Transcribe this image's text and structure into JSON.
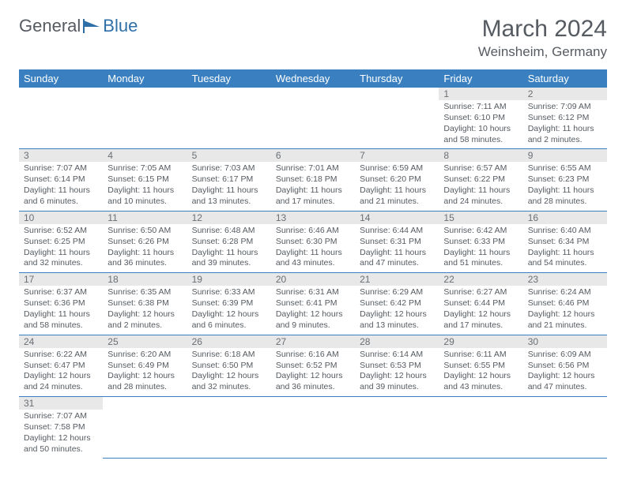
{
  "brand": {
    "part1": "General",
    "part2": "Blue"
  },
  "title": "March 2024",
  "location": "Weinsheim, Germany",
  "colors": {
    "header_bg": "#3a80c0",
    "header_fg": "#ffffff",
    "daynum_bg": "#e8e8e8",
    "text": "#555b61",
    "rule": "#3a80c0"
  },
  "daysOfWeek": [
    "Sunday",
    "Monday",
    "Tuesday",
    "Wednesday",
    "Thursday",
    "Friday",
    "Saturday"
  ],
  "weeks": [
    [
      null,
      null,
      null,
      null,
      null,
      {
        "n": "1",
        "sr": "7:11 AM",
        "ss": "6:10 PM",
        "dl": "10 hours and 58 minutes."
      },
      {
        "n": "2",
        "sr": "7:09 AM",
        "ss": "6:12 PM",
        "dl": "11 hours and 2 minutes."
      }
    ],
    [
      {
        "n": "3",
        "sr": "7:07 AM",
        "ss": "6:14 PM",
        "dl": "11 hours and 6 minutes."
      },
      {
        "n": "4",
        "sr": "7:05 AM",
        "ss": "6:15 PM",
        "dl": "11 hours and 10 minutes."
      },
      {
        "n": "5",
        "sr": "7:03 AM",
        "ss": "6:17 PM",
        "dl": "11 hours and 13 minutes."
      },
      {
        "n": "6",
        "sr": "7:01 AM",
        "ss": "6:18 PM",
        "dl": "11 hours and 17 minutes."
      },
      {
        "n": "7",
        "sr": "6:59 AM",
        "ss": "6:20 PM",
        "dl": "11 hours and 21 minutes."
      },
      {
        "n": "8",
        "sr": "6:57 AM",
        "ss": "6:22 PM",
        "dl": "11 hours and 24 minutes."
      },
      {
        "n": "9",
        "sr": "6:55 AM",
        "ss": "6:23 PM",
        "dl": "11 hours and 28 minutes."
      }
    ],
    [
      {
        "n": "10",
        "sr": "6:52 AM",
        "ss": "6:25 PM",
        "dl": "11 hours and 32 minutes."
      },
      {
        "n": "11",
        "sr": "6:50 AM",
        "ss": "6:26 PM",
        "dl": "11 hours and 36 minutes."
      },
      {
        "n": "12",
        "sr": "6:48 AM",
        "ss": "6:28 PM",
        "dl": "11 hours and 39 minutes."
      },
      {
        "n": "13",
        "sr": "6:46 AM",
        "ss": "6:30 PM",
        "dl": "11 hours and 43 minutes."
      },
      {
        "n": "14",
        "sr": "6:44 AM",
        "ss": "6:31 PM",
        "dl": "11 hours and 47 minutes."
      },
      {
        "n": "15",
        "sr": "6:42 AM",
        "ss": "6:33 PM",
        "dl": "11 hours and 51 minutes."
      },
      {
        "n": "16",
        "sr": "6:40 AM",
        "ss": "6:34 PM",
        "dl": "11 hours and 54 minutes."
      }
    ],
    [
      {
        "n": "17",
        "sr": "6:37 AM",
        "ss": "6:36 PM",
        "dl": "11 hours and 58 minutes."
      },
      {
        "n": "18",
        "sr": "6:35 AM",
        "ss": "6:38 PM",
        "dl": "12 hours and 2 minutes."
      },
      {
        "n": "19",
        "sr": "6:33 AM",
        "ss": "6:39 PM",
        "dl": "12 hours and 6 minutes."
      },
      {
        "n": "20",
        "sr": "6:31 AM",
        "ss": "6:41 PM",
        "dl": "12 hours and 9 minutes."
      },
      {
        "n": "21",
        "sr": "6:29 AM",
        "ss": "6:42 PM",
        "dl": "12 hours and 13 minutes."
      },
      {
        "n": "22",
        "sr": "6:27 AM",
        "ss": "6:44 PM",
        "dl": "12 hours and 17 minutes."
      },
      {
        "n": "23",
        "sr": "6:24 AM",
        "ss": "6:46 PM",
        "dl": "12 hours and 21 minutes."
      }
    ],
    [
      {
        "n": "24",
        "sr": "6:22 AM",
        "ss": "6:47 PM",
        "dl": "12 hours and 24 minutes."
      },
      {
        "n": "25",
        "sr": "6:20 AM",
        "ss": "6:49 PM",
        "dl": "12 hours and 28 minutes."
      },
      {
        "n": "26",
        "sr": "6:18 AM",
        "ss": "6:50 PM",
        "dl": "12 hours and 32 minutes."
      },
      {
        "n": "27",
        "sr": "6:16 AM",
        "ss": "6:52 PM",
        "dl": "12 hours and 36 minutes."
      },
      {
        "n": "28",
        "sr": "6:14 AM",
        "ss": "6:53 PM",
        "dl": "12 hours and 39 minutes."
      },
      {
        "n": "29",
        "sr": "6:11 AM",
        "ss": "6:55 PM",
        "dl": "12 hours and 43 minutes."
      },
      {
        "n": "30",
        "sr": "6:09 AM",
        "ss": "6:56 PM",
        "dl": "12 hours and 47 minutes."
      }
    ],
    [
      {
        "n": "31",
        "sr": "7:07 AM",
        "ss": "7:58 PM",
        "dl": "12 hours and 50 minutes."
      },
      null,
      null,
      null,
      null,
      null,
      null
    ]
  ],
  "labels": {
    "sunrise": "Sunrise:",
    "sunset": "Sunset:",
    "daylight": "Daylight:"
  }
}
